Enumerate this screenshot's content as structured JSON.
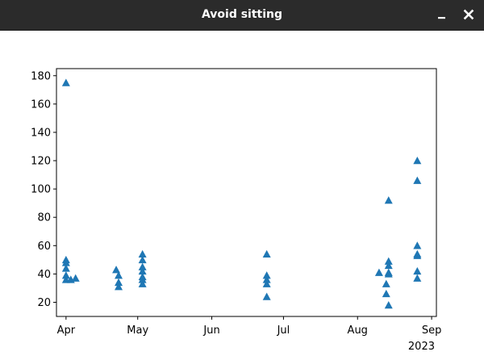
{
  "window": {
    "title": "Avoid sitting",
    "minimize_icon": "minimize-icon",
    "close_icon": "close-icon"
  },
  "chart_data": {
    "type": "scatter",
    "marker": "triangle-up",
    "color": "#1f77b4",
    "x_type": "date",
    "xlim": [
      "2023-03-28",
      "2023-09-03"
    ],
    "ylim": [
      10,
      185
    ],
    "xticks": [
      {
        "date": "2023-04-01",
        "label": "Apr"
      },
      {
        "date": "2023-05-01",
        "label": "May"
      },
      {
        "date": "2023-06-01",
        "label": "Jun"
      },
      {
        "date": "2023-07-01",
        "label": "Jul"
      },
      {
        "date": "2023-08-01",
        "label": "Aug"
      },
      {
        "date": "2023-09-01",
        "label": "Sep"
      }
    ],
    "x_offset_label": "2023",
    "yticks": [
      20,
      40,
      60,
      80,
      100,
      120,
      140,
      160,
      180
    ],
    "grid": false,
    "points": [
      {
        "x": "2023-04-01",
        "y": 175
      },
      {
        "x": "2023-04-01",
        "y": 50
      },
      {
        "x": "2023-04-01",
        "y": 48
      },
      {
        "x": "2023-04-01",
        "y": 44
      },
      {
        "x": "2023-04-01",
        "y": 39
      },
      {
        "x": "2023-04-01",
        "y": 36
      },
      {
        "x": "2023-04-03",
        "y": 36
      },
      {
        "x": "2023-04-05",
        "y": 37
      },
      {
        "x": "2023-04-22",
        "y": 43
      },
      {
        "x": "2023-04-23",
        "y": 39
      },
      {
        "x": "2023-04-23",
        "y": 34
      },
      {
        "x": "2023-04-23",
        "y": 31
      },
      {
        "x": "2023-05-03",
        "y": 54
      },
      {
        "x": "2023-05-03",
        "y": 50
      },
      {
        "x": "2023-05-03",
        "y": 45
      },
      {
        "x": "2023-05-03",
        "y": 42
      },
      {
        "x": "2023-05-03",
        "y": 38
      },
      {
        "x": "2023-05-03",
        "y": 36
      },
      {
        "x": "2023-05-03",
        "y": 33
      },
      {
        "x": "2023-06-24",
        "y": 54
      },
      {
        "x": "2023-06-24",
        "y": 39
      },
      {
        "x": "2023-06-24",
        "y": 36
      },
      {
        "x": "2023-06-24",
        "y": 33
      },
      {
        "x": "2023-06-24",
        "y": 24
      },
      {
        "x": "2023-08-10",
        "y": 41
      },
      {
        "x": "2023-08-14",
        "y": 92
      },
      {
        "x": "2023-08-14",
        "y": 49
      },
      {
        "x": "2023-08-14",
        "y": 46
      },
      {
        "x": "2023-08-14",
        "y": 41
      },
      {
        "x": "2023-08-14",
        "y": 40
      },
      {
        "x": "2023-08-13",
        "y": 33
      },
      {
        "x": "2023-08-13",
        "y": 26
      },
      {
        "x": "2023-08-14",
        "y": 18
      },
      {
        "x": "2023-08-26",
        "y": 120
      },
      {
        "x": "2023-08-26",
        "y": 106
      },
      {
        "x": "2023-08-26",
        "y": 60
      },
      {
        "x": "2023-08-26",
        "y": 54
      },
      {
        "x": "2023-08-26",
        "y": 53
      },
      {
        "x": "2023-08-26",
        "y": 42
      },
      {
        "x": "2023-08-26",
        "y": 37
      }
    ]
  }
}
